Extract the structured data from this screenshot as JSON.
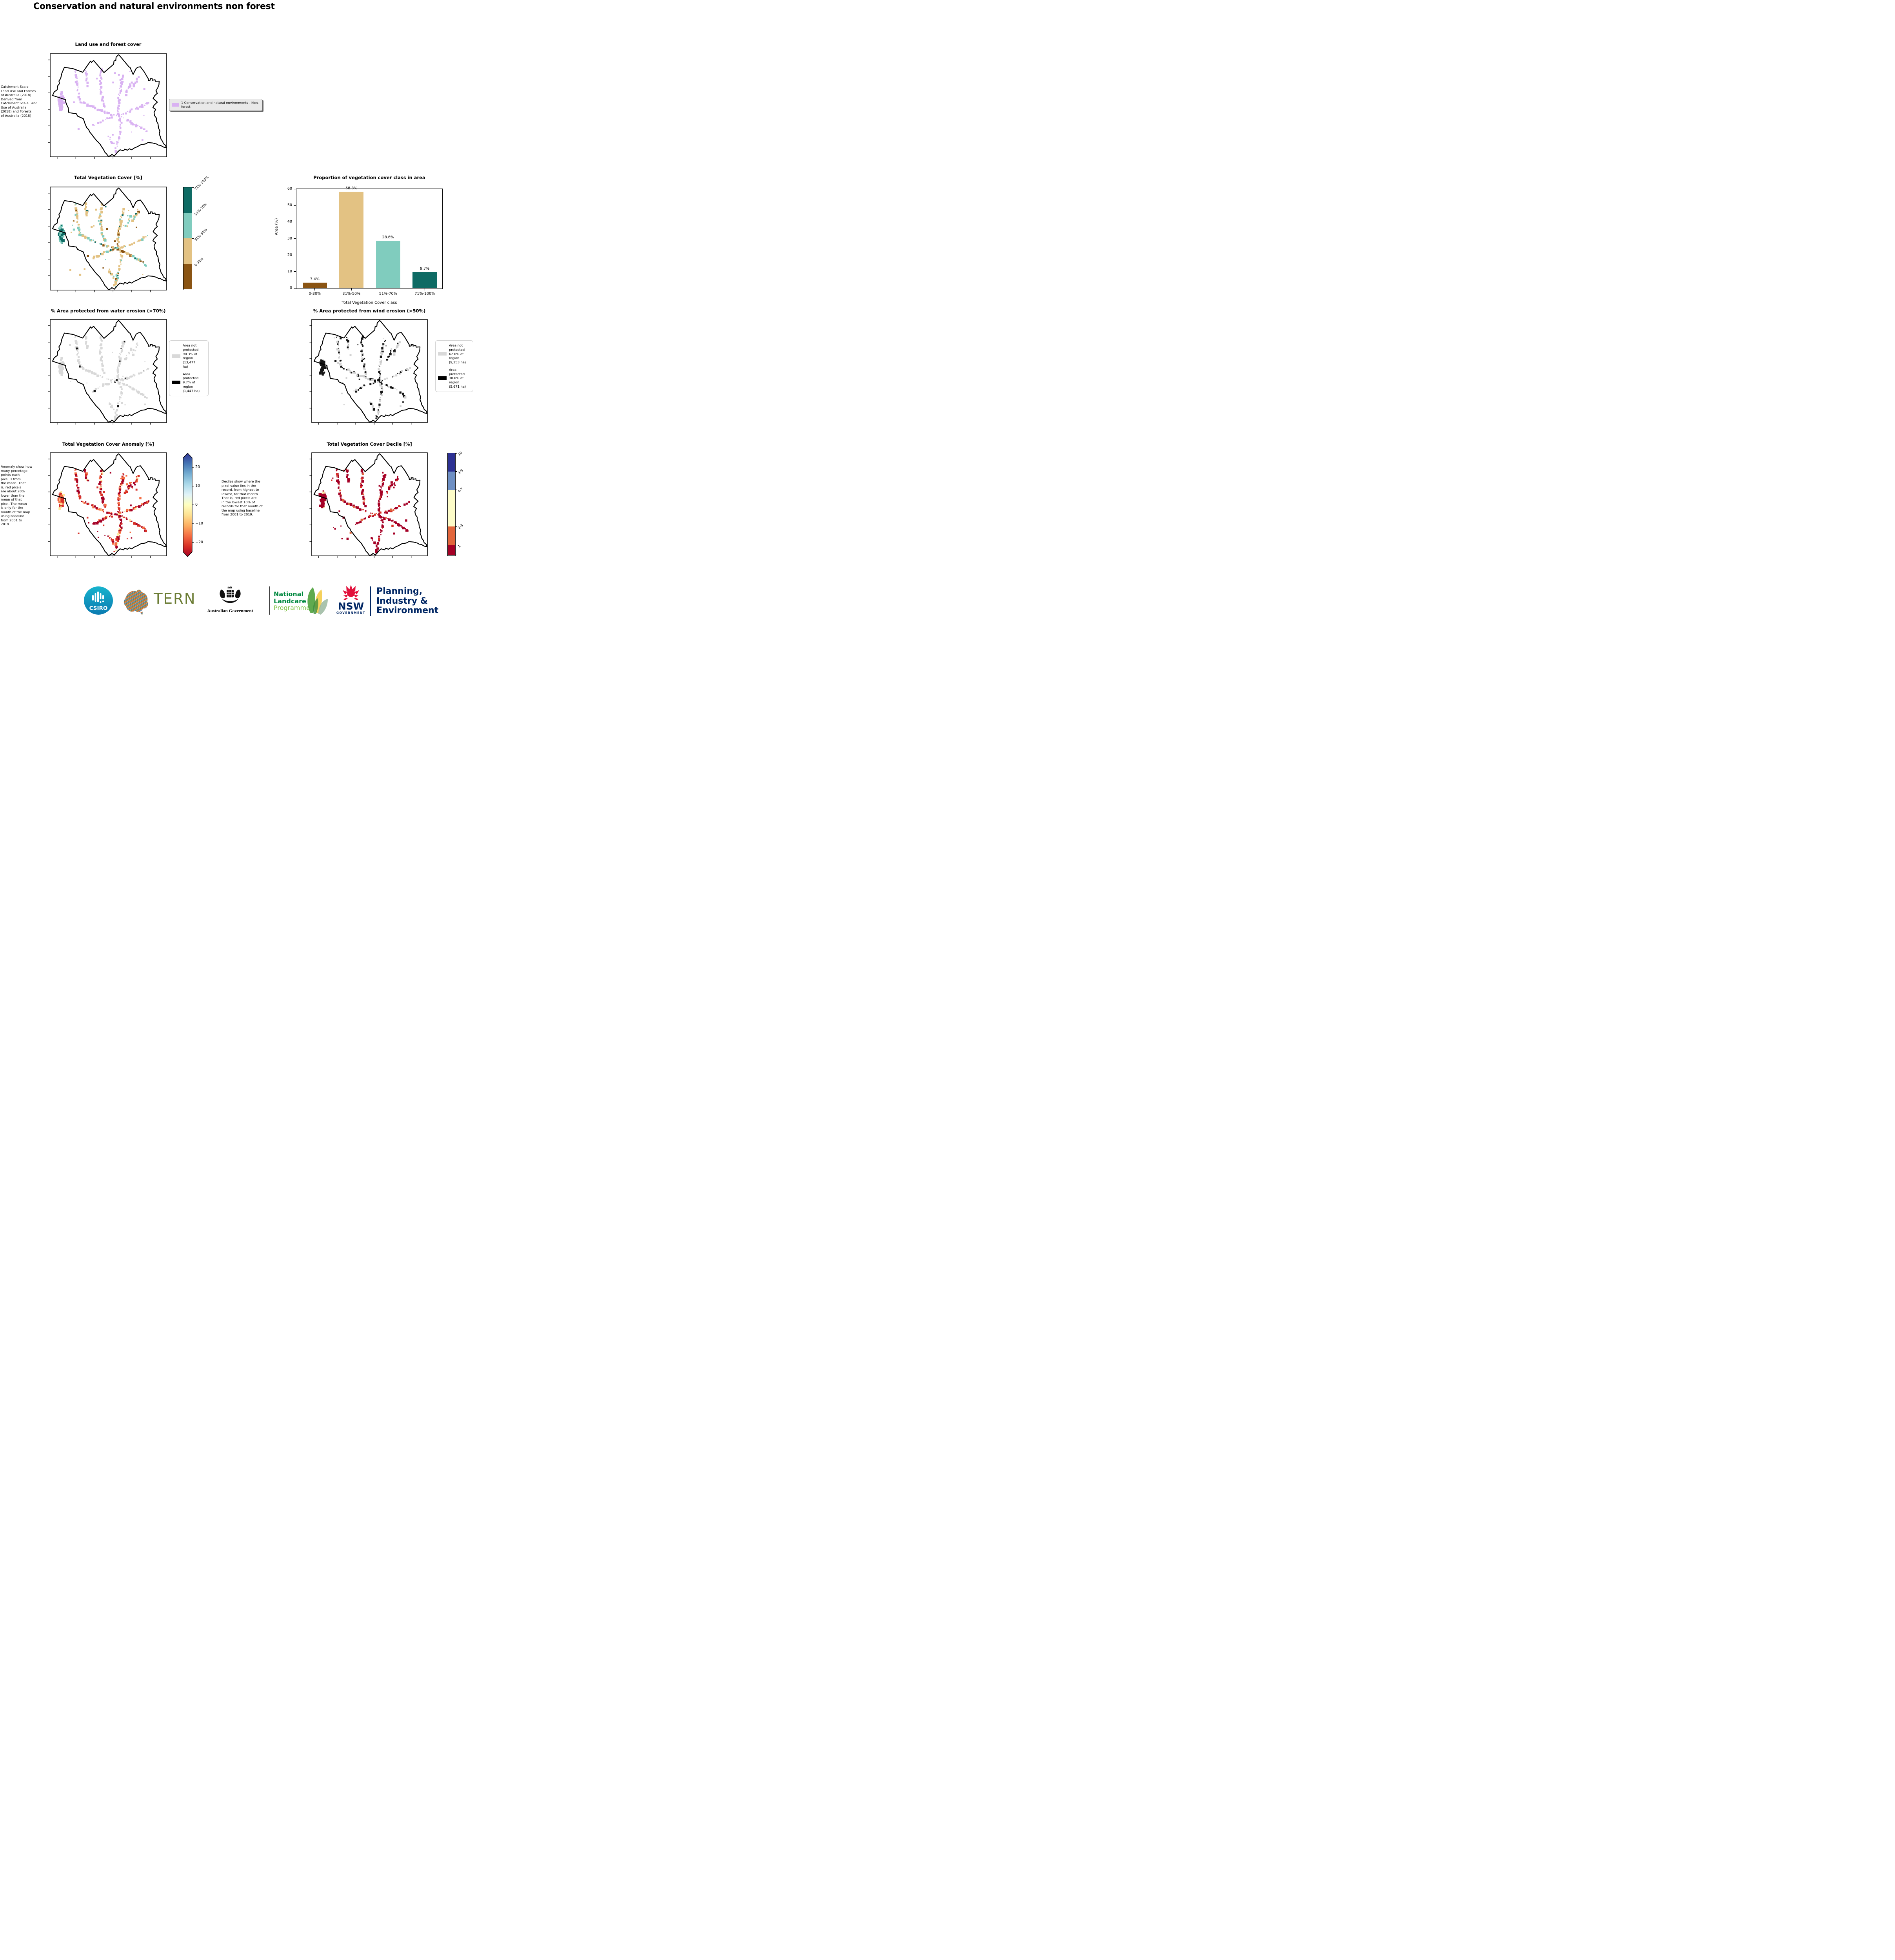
{
  "page_title": "Conservation and natural environments non forest",
  "panels": {
    "land_use": {
      "title": "Land use and forest cover",
      "caption": " Catchment Scale\nLand Use and Forests\nof Australia (2018)\nDerived from\nCatchment Scale Land\nUse of Australia\n(2018) and Forests\nof Australia (2018)",
      "legend_label": "1 Conservation and natural environments - Non-forest",
      "legend_swatch": "#d9b2f2",
      "dots": {
        "seed": 11,
        "spacing": 1.25,
        "size": 1.4,
        "palette": [
          [
            "#d9b2f2",
            1.0
          ]
        ],
        "cluster_palette": [
          [
            "#d9b2f2",
            1.0
          ]
        ],
        "cluster_n": 55,
        "scatter_n": 20
      }
    },
    "veg_cover": {
      "title": "Total Vegetation Cover [%]",
      "colorbar": {
        "labels": [
          "71%-100%",
          "51%-70%",
          "31%-50%",
          "0-30%"
        ],
        "colors": [
          "#0e6b64",
          "#80ccbe",
          "#e3c283",
          "#8a5413"
        ],
        "heights": [
          25,
          25,
          25,
          25
        ]
      },
      "dots": {
        "seed": 22,
        "spacing": 1.1,
        "size": 1.5,
        "palette": [
          [
            "#e3c283",
            0.6
          ],
          [
            "#80ccbe",
            0.2
          ],
          [
            "#0e6b64",
            0.08
          ],
          [
            "#8a5413",
            0.12
          ]
        ],
        "cluster_palette": [
          [
            "#0e6b64",
            0.5
          ],
          [
            "#80ccbe",
            0.5
          ]
        ],
        "cluster_n": 48,
        "scatter_n": 25
      }
    },
    "water": {
      "title": "% Area protected from water erosion (>70%)",
      "legend": [
        {
          "swatch": "#d9d9d9",
          "label": "Area not\nprotected\n90.3% of\nregion\n(13,477\nha)"
        },
        {
          "swatch": "#000000",
          "label": "Area\nprotected\n9.7% of\nregion\n(1,447 ha)"
        }
      ],
      "dots": {
        "seed": 33,
        "spacing": 1.15,
        "size": 1.4,
        "palette": [
          [
            "#d8d8d8",
            0.96
          ],
          [
            "#151515",
            0.04
          ]
        ],
        "cluster_palette": [
          [
            "#d8d8d8",
            1.0
          ]
        ],
        "cluster_n": 40,
        "scatter_n": 18
      }
    },
    "wind": {
      "title": "% Area protected from wind erosion (>50%)",
      "legend": [
        {
          "swatch": "#d9d9d9",
          "label": "Area not\nprotected\n62.0% of\nregion\n(9,253 ha)"
        },
        {
          "swatch": "#000000",
          "label": "Area\nprotected\n38.0% of\nregion\n(5,671 ha)"
        }
      ],
      "dots": {
        "seed": 44,
        "spacing": 1.3,
        "size": 1.4,
        "palette": [
          [
            "#151515",
            0.5
          ],
          [
            "#d2d2d2",
            0.5
          ]
        ],
        "cluster_palette": [
          [
            "#151515",
            1.0
          ]
        ],
        "cluster_n": 46,
        "scatter_n": 20
      }
    },
    "anomaly": {
      "title": "Total Vegetation Cover Anomaly [%]",
      "caption": "Anomaly show how\nmany percetage\npoints each\npixel is from\nthe mean. That\nis, red pixels\nare about 20%\nlower than the\nmean of that\npixel. The mean\nis only for the\nmonth of the map\nusing baseline\nfrom 2001 to\n2019.",
      "colorbar_ticks": [
        "20",
        "10",
        "0",
        "−10",
        "−20"
      ],
      "colorbar_gradient": [
        "#313695",
        "#4575b4",
        "#74add1",
        "#abd9e9",
        "#e0f3f8",
        "#ffffbf",
        "#fee090",
        "#fdae61",
        "#f46d43",
        "#d73027",
        "#a50026"
      ],
      "dots": {
        "seed": 55,
        "spacing": 1.0,
        "size": 1.5,
        "palette": [
          [
            "#a50126",
            0.4
          ],
          [
            "#d73027",
            0.3
          ],
          [
            "#f46d43",
            0.22
          ],
          [
            "#fee99d",
            0.08
          ]
        ],
        "cluster_palette": [
          [
            "#d73027",
            0.4
          ],
          [
            "#fee99d",
            0.32
          ],
          [
            "#f46d43",
            0.28
          ]
        ],
        "cluster_n": 50,
        "scatter_n": 22
      }
    },
    "decile": {
      "title": "Total Vegetation Cover Decile [%]",
      "caption": "Deciles show where the\npixel value lies in the\nrecord, from highest to\nlowest, for that month.\nThat is, red pixels are\nin the lowest 10% of\nrecords for that month of\nthe map using baseline\nfrom 2001 to 2019.",
      "colorbar": {
        "labels": [
          "10",
          "8-9",
          "4-7",
          "2-3",
          "1"
        ],
        "colors": [
          "#2d3193",
          "#6e8fc3",
          "#fdfcc8",
          "#e2663c",
          "#a50126"
        ],
        "heights": [
          18,
          18,
          36,
          18,
          10
        ]
      },
      "dots": {
        "seed": 66,
        "spacing": 1.2,
        "size": 1.5,
        "palette": [
          [
            "#a50126",
            0.72
          ],
          [
            "#d73027",
            0.14
          ],
          [
            "#e2663c",
            0.14
          ]
        ],
        "cluster_palette": [
          [
            "#a50126",
            0.88
          ],
          [
            "#f6e8a0",
            0.07
          ],
          [
            "#7d9bc8",
            0.05
          ]
        ],
        "cluster_n": 46,
        "scatter_n": 20
      }
    }
  },
  "chart_data": {
    "type": "bar",
    "title": "Proportion of vegetation cover class in area",
    "categories": [
      "0-30%",
      "31%-50%",
      "51%-70%",
      "71%-100%"
    ],
    "values": [
      3.4,
      58.3,
      28.6,
      9.7
    ],
    "value_labels": [
      "3.4%",
      "58.3%",
      "28.6%",
      "9.7%"
    ],
    "bar_colors": [
      "#8a5413",
      "#e3c283",
      "#80ccbe",
      "#0e6b64"
    ],
    "xlabel": "Total Vegetation Cover class",
    "ylabel": "Area (%)",
    "ylim": [
      0,
      60
    ],
    "yticks": [
      "0",
      "10",
      "20",
      "30",
      "40",
      "50",
      "60"
    ],
    "grid": false,
    "legend": "none"
  },
  "footer": {
    "csiro": "CSIRO",
    "tern": "TERN",
    "ausgov": "Australian Government",
    "landcare_lines": [
      "National",
      "Landcare",
      "Programme"
    ],
    "nsw": "NSW",
    "nsw_sub": "GOVERNMENT",
    "planning_lines": [
      "Planning,",
      "Industry &",
      "Environment"
    ],
    "colors": {
      "csiro_teal": "#0f9bc0",
      "tern_olive": "#6b7c34",
      "landcare_green": "#00883f",
      "landcare_light": "#7dc242",
      "nsw_navy": "#002664",
      "waratah_red": "#e2123c"
    }
  }
}
